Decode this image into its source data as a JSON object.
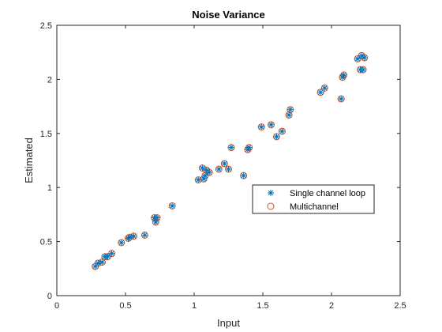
{
  "chart_data": {
    "type": "scatter",
    "title": "Noise Variance",
    "xlabel": "Input",
    "ylabel": "Estimated",
    "xlim": [
      0,
      2.5
    ],
    "ylim": [
      0,
      2.5
    ],
    "xticks": [
      0,
      0.5,
      1,
      1.5,
      2,
      2.5
    ],
    "yticks": [
      0,
      0.5,
      1,
      1.5,
      2,
      2.5
    ],
    "xtick_labels": [
      "0",
      "0.5",
      "1",
      "1.5",
      "2",
      "2.5"
    ],
    "ytick_labels": [
      "0",
      "0.5",
      "1",
      "1.5",
      "2",
      "2.5"
    ],
    "grid": false,
    "legend_position": "right-middle",
    "x": [
      0.28,
      0.3,
      0.33,
      0.35,
      0.37,
      0.4,
      0.47,
      0.52,
      0.53,
      0.56,
      0.64,
      0.71,
      0.72,
      0.73,
      0.84,
      1.03,
      1.06,
      1.07,
      1.08,
      1.09,
      1.11,
      1.18,
      1.22,
      1.25,
      1.27,
      1.36,
      1.39,
      1.4,
      1.49,
      1.56,
      1.6,
      1.64,
      1.69,
      1.7,
      1.92,
      1.95,
      2.07,
      2.08,
      2.09,
      2.19,
      2.21,
      2.22,
      2.23,
      2.24
    ],
    "series": [
      {
        "name": "Single channel loop",
        "marker": "asterisk",
        "color": "#0072BD",
        "y": [
          0.27,
          0.3,
          0.31,
          0.36,
          0.36,
          0.39,
          0.49,
          0.53,
          0.54,
          0.55,
          0.56,
          0.72,
          0.68,
          0.72,
          0.83,
          1.07,
          1.18,
          1.08,
          1.11,
          1.16,
          1.14,
          1.17,
          1.22,
          1.17,
          1.37,
          1.11,
          1.35,
          1.37,
          1.56,
          1.58,
          1.47,
          1.52,
          1.67,
          1.72,
          1.88,
          1.92,
          1.82,
          2.02,
          2.04,
          2.19,
          2.09,
          2.22,
          2.09,
          2.2
        ]
      },
      {
        "name": "Multichannel",
        "marker": "circle",
        "color": "#D95319",
        "y": [
          0.27,
          0.3,
          0.31,
          0.36,
          0.36,
          0.39,
          0.49,
          0.53,
          0.54,
          0.55,
          0.56,
          0.72,
          0.68,
          0.72,
          0.83,
          1.07,
          1.18,
          1.08,
          1.11,
          1.16,
          1.14,
          1.17,
          1.22,
          1.17,
          1.37,
          1.11,
          1.35,
          1.37,
          1.56,
          1.58,
          1.47,
          1.52,
          1.67,
          1.72,
          1.88,
          1.92,
          1.82,
          2.02,
          2.04,
          2.19,
          2.09,
          2.22,
          2.09,
          2.2
        ]
      }
    ]
  }
}
